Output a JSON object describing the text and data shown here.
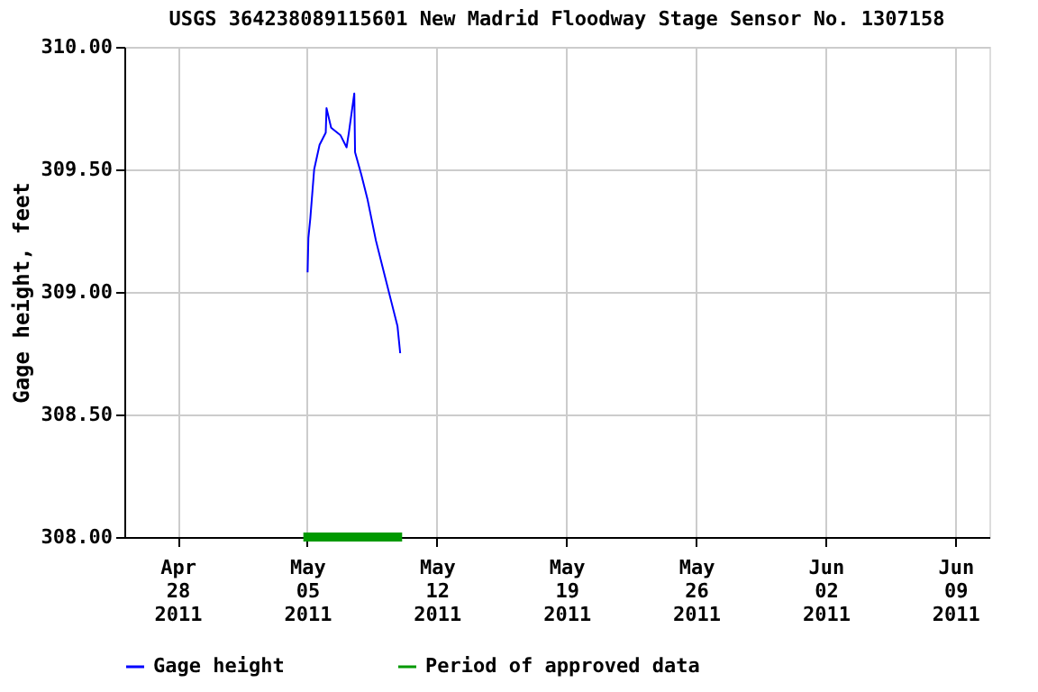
{
  "chart_data": {
    "type": "line",
    "title": "USGS 364238089115601 New Madrid Floodway Stage Sensor No. 1307158",
    "ylabel": "Gage height, feet",
    "x": [
      "2011-05-05T00:30",
      "2011-05-05T01:30",
      "2011-05-05T04:00",
      "2011-05-05T09:00",
      "2011-05-05T16:00",
      "2011-05-06T00:00",
      "2011-05-06T01:00",
      "2011-05-06T07:00",
      "2011-05-06T19:00",
      "2011-05-07T03:00",
      "2011-05-07T06:00",
      "2011-05-07T13:00",
      "2011-05-07T14:00",
      "2011-05-07T22:00",
      "2011-05-08T06:00",
      "2011-05-08T17:00",
      "2011-05-09T05:00",
      "2011-05-09T13:00",
      "2011-05-09T21:00",
      "2011-05-10T00:30"
    ],
    "series": [
      {
        "name": "Gage height",
        "color": "#0000ff",
        "values": [
          309.08,
          309.22,
          309.3,
          309.5,
          309.6,
          309.65,
          309.75,
          309.67,
          309.64,
          309.59,
          309.65,
          309.81,
          309.57,
          309.48,
          309.38,
          309.21,
          309.06,
          308.96,
          308.86,
          308.75
        ]
      },
      {
        "name": "Period of approved data",
        "color": "#009900",
        "x": [
          "2011-05-04T19:00",
          "2011-05-10T03:00"
        ],
        "values": [
          308,
          308
        ]
      }
    ],
    "xlim": [
      "2011-04-25T03:00",
      "2011-06-10T20:00"
    ],
    "xticks": [
      {
        "value": "2011-04-28",
        "label": "Apr\n28\n2011"
      },
      {
        "value": "2011-05-05",
        "label": "May\n05\n2011"
      },
      {
        "value": "2011-05-12",
        "label": "May\n12\n2011"
      },
      {
        "value": "2011-05-19",
        "label": "May\n19\n2011"
      },
      {
        "value": "2011-05-26",
        "label": "May\n26\n2011"
      },
      {
        "value": "2011-06-02",
        "label": "Jun\n02\n2011"
      },
      {
        "value": "2011-06-09",
        "label": "Jun\n09\n2011"
      }
    ],
    "ylim": [
      308,
      310
    ],
    "yticks": [
      {
        "value": 308,
        "label": "308.00"
      },
      {
        "value": 308.5,
        "label": "308.50"
      },
      {
        "value": 309,
        "label": "309.00"
      },
      {
        "value": 309.5,
        "label": "309.50"
      },
      {
        "value": 310,
        "label": "310.00"
      }
    ],
    "grid": true,
    "legend": "bottom",
    "line_style": "solid",
    "marker": "none"
  }
}
